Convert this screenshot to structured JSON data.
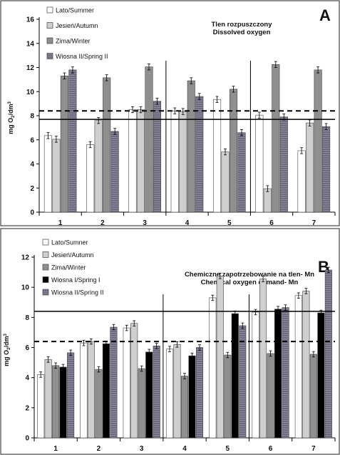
{
  "chart_data": [
    {
      "type": "bar",
      "panel": "A",
      "title": "Tlen rozpuszczony",
      "subtitle": "Dissolved oxygen",
      "ylabel": "mg O2/dm3",
      "ylim": [
        0,
        16
      ],
      "yticks": [
        0,
        2,
        4,
        6,
        8,
        10,
        12,
        14,
        16
      ],
      "categories": [
        "1",
        "2",
        "3",
        "4",
        "5",
        "6",
        "7"
      ],
      "series": [
        {
          "name": "Lato/Summer",
          "color": "#ffffff",
          "values": [
            6.35,
            5.6,
            8.5,
            8.4,
            9.35,
            8.05,
            5.1
          ]
        },
        {
          "name": "Jesień/Autumn",
          "color": "#cfcfcf",
          "values": [
            6.05,
            7.6,
            8.5,
            8.35,
            5.0,
            1.95,
            7.4
          ]
        },
        {
          "name": "Zima/Winter",
          "color": "#8f8f8f",
          "values": [
            11.3,
            11.15,
            12.05,
            10.9,
            10.2,
            12.25,
            11.8
          ]
        },
        {
          "name": "Wiosna II/Spring II",
          "color": "#6f6f7f",
          "values": [
            11.8,
            6.7,
            9.2,
            9.6,
            6.6,
            7.9,
            7.1
          ]
        }
      ],
      "reference_lines": {
        "dashed": 8.4,
        "solid": 7.7
      },
      "legend": "top-left",
      "grid": false
    },
    {
      "type": "bar",
      "panel": "B",
      "title": "Chemiczne zapotrzebowanie na tlen- Mn",
      "subtitle": "Chemical oxygen demand- Mn",
      "ylabel": "mg O2/dm3",
      "ylim": [
        0,
        12
      ],
      "yticks": [
        0,
        2,
        4,
        6,
        8,
        10,
        12
      ],
      "categories": [
        "1",
        "2",
        "3",
        "4",
        "5",
        "6",
        "7"
      ],
      "series": [
        {
          "name": "Lato/Sumner",
          "color": "#ffffff",
          "values": [
            4.2,
            6.3,
            7.3,
            5.9,
            9.3,
            8.35,
            9.45
          ]
        },
        {
          "name": "Jesień/Autumn",
          "color": "#cfcfcf",
          "values": [
            5.2,
            6.4,
            7.6,
            6.2,
            10.75,
            10.55,
            9.75
          ]
        },
        {
          "name": "Zima/Winter",
          "color": "#8f8f8f",
          "values": [
            4.8,
            4.55,
            4.6,
            4.1,
            5.5,
            5.6,
            5.55
          ]
        },
        {
          "name": "Wiosna I/Spring I",
          "color": "#000000",
          "values": [
            4.7,
            6.25,
            5.7,
            5.45,
            8.25,
            8.55,
            8.3
          ]
        },
        {
          "name": "Wiosna II/Spring II",
          "color": "#6f6f7f",
          "values": [
            5.65,
            7.35,
            6.1,
            6.0,
            7.45,
            8.65,
            11.15
          ]
        }
      ],
      "reference_lines": {
        "dashed": 6.4,
        "solid": 8.4
      },
      "legend": "top-left",
      "grid": false
    }
  ]
}
